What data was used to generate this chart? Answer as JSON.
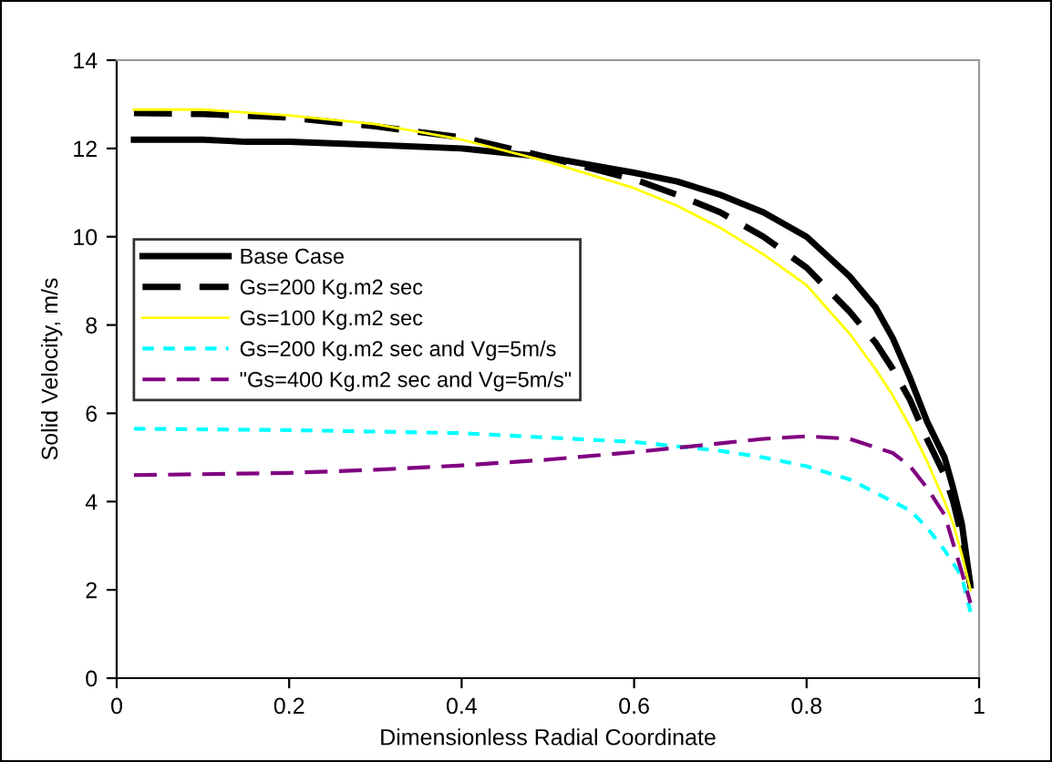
{
  "chart_data": {
    "type": "line",
    "xlabel": "Dimensionless Radial Coordinate",
    "ylabel": "Solid Velocity, m/s",
    "xlim": [
      0,
      1
    ],
    "ylim": [
      0,
      14
    ],
    "xticks": [
      0,
      0.2,
      0.4,
      0.6,
      0.8,
      1
    ],
    "yticks": [
      0,
      2,
      4,
      6,
      8,
      10,
      12,
      14
    ],
    "grid": false,
    "legend": "center left",
    "marker": "none",
    "series": [
      {
        "name": "Base Case",
        "color": "#000000",
        "line_style": "solid",
        "x": [
          0.02,
          0.1,
          0.15,
          0.2,
          0.3,
          0.4,
          0.5,
          0.6,
          0.65,
          0.7,
          0.75,
          0.8,
          0.85,
          0.88,
          0.9,
          0.92,
          0.94,
          0.96,
          0.97,
          0.98,
          0.99
        ],
        "values": [
          12.2,
          12.2,
          12.15,
          12.15,
          12.08,
          12.0,
          11.8,
          11.45,
          11.25,
          10.95,
          10.55,
          10.0,
          9.1,
          8.4,
          7.7,
          6.8,
          5.8,
          5.0,
          4.3,
          3.5,
          2.1
        ]
      },
      {
        "name": "Gs=200 Kg.m2 sec",
        "color": "#000000",
        "line_style": "dashed",
        "x": [
          0.02,
          0.1,
          0.2,
          0.3,
          0.4,
          0.5,
          0.6,
          0.65,
          0.7,
          0.75,
          0.8,
          0.85,
          0.88,
          0.9,
          0.92,
          0.94,
          0.96,
          0.97,
          0.98,
          0.99
        ],
        "values": [
          12.8,
          12.78,
          12.7,
          12.5,
          12.25,
          11.8,
          11.3,
          10.95,
          10.55,
          10.0,
          9.3,
          8.3,
          7.6,
          7.0,
          6.3,
          5.4,
          4.6,
          4.0,
          3.2,
          2.1
        ]
      },
      {
        "name": "Gs=100 Kg.m2 sec",
        "color": "#ffff00",
        "line_style": "solid",
        "x": [
          0.02,
          0.1,
          0.2,
          0.3,
          0.4,
          0.5,
          0.6,
          0.65,
          0.7,
          0.75,
          0.8,
          0.85,
          0.88,
          0.9,
          0.92,
          0.94,
          0.96,
          0.97,
          0.98,
          0.99
        ],
        "values": [
          12.88,
          12.88,
          12.75,
          12.55,
          12.2,
          11.7,
          11.1,
          10.7,
          10.2,
          9.6,
          8.9,
          7.8,
          7.0,
          6.4,
          5.7,
          4.9,
          4.0,
          3.5,
          2.8,
          2.0
        ]
      },
      {
        "name": "Gs=200 Kg.m2 sec and Vg=5m/s",
        "color": "#00ffff",
        "line_style": "dotted",
        "x": [
          0.02,
          0.2,
          0.4,
          0.5,
          0.6,
          0.65,
          0.7,
          0.75,
          0.8,
          0.85,
          0.9,
          0.92,
          0.94,
          0.96,
          0.98,
          0.99
        ],
        "values": [
          5.65,
          5.62,
          5.55,
          5.45,
          5.35,
          5.25,
          5.15,
          5.0,
          4.8,
          4.5,
          4.0,
          3.8,
          3.4,
          2.9,
          2.3,
          1.5
        ]
      },
      {
        "name": "\"Gs=400 Kg.m2 sec and Vg=5m/s\"",
        "color": "#800080",
        "line_style": "dashed",
        "x": [
          0.02,
          0.1,
          0.2,
          0.3,
          0.4,
          0.5,
          0.6,
          0.7,
          0.75,
          0.8,
          0.85,
          0.9,
          0.92,
          0.94,
          0.96,
          0.98,
          0.99
        ],
        "values": [
          4.6,
          4.62,
          4.65,
          4.72,
          4.82,
          4.95,
          5.12,
          5.32,
          5.42,
          5.48,
          5.42,
          5.1,
          4.8,
          4.3,
          3.7,
          2.4,
          1.7
        ]
      }
    ]
  }
}
